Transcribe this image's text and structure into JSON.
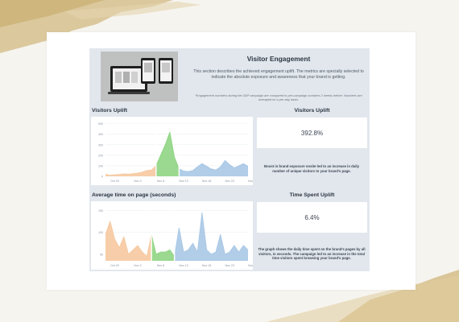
{
  "header": {
    "title": "Visitor Engagement",
    "description": "This section describes the achieved engagement uplift. The metrics are specially selected to indicate the absolute exposure and awareness that your brand is getting.",
    "footnote": "*Engagement numbers during the ZAP campaign are compared to pre-campaign numbers 2 weeks before. Numbers are averaged on a per-day basis."
  },
  "visitors": {
    "chart_title": "Visitors Uplift",
    "metric_title": "Visitors Uplift",
    "metric_value": "392.8%",
    "caption": "Boost in brand exposure onsite led to an increase in daily number of unique visitors to your brand's page."
  },
  "time": {
    "chart_title": "Average time on page (seconds)",
    "metric_title": "Time Spent Uplift",
    "metric_value": "6.4%",
    "caption": "The graph shows the daily time spent on the brand's pages by all visitors, in seconds. The campaign led to an increase in the total time visitors spent browsing your brand's page."
  },
  "colors": {
    "pre_campaign": "#f6c9a0",
    "campaign": "#8fd583",
    "post_campaign": "#a9c8e6",
    "dashboard_bg": "#e2e7ed"
  },
  "chart_data": [
    {
      "type": "area",
      "title": "Visitors Uplift",
      "x_tick_labels": [
        "Oct 29",
        "Nov 3",
        "Nov 8",
        "Nov 13",
        "Nov 18",
        "Nov 23",
        "Nov 28"
      ],
      "y_ticks": [
        0,
        100,
        200,
        300,
        400,
        500
      ],
      "ylim": [
        0,
        520
      ],
      "grid": true,
      "x": [
        0,
        1,
        2,
        3,
        4,
        5,
        6,
        7,
        8,
        9,
        10,
        11,
        12,
        13,
        14,
        15,
        16,
        17,
        18,
        19,
        20,
        21,
        22,
        23,
        24,
        25,
        26,
        27,
        28,
        29,
        30,
        31
      ],
      "y": [
        20,
        10,
        15,
        18,
        22,
        20,
        25,
        30,
        40,
        55,
        60,
        100,
        200,
        300,
        420,
        180,
        70,
        50,
        45,
        55,
        90,
        120,
        95,
        70,
        60,
        90,
        150,
        110,
        80,
        100,
        120,
        95
      ],
      "segments": [
        {
          "name": "pre",
          "from": 0,
          "to": 11
        },
        {
          "name": "campaign",
          "from": 11,
          "to": 16
        },
        {
          "name": "post",
          "from": 16,
          "to": 31
        }
      ]
    },
    {
      "type": "area",
      "title": "Average time on page (seconds)",
      "x_tick_labels": [
        "Oct 29",
        "Nov 3",
        "Nov 8",
        "Nov 13",
        "Nov 18",
        "Nov 23",
        "Nov 28"
      ],
      "y_ticks": [
        50,
        100,
        150
      ],
      "ylim": [
        35,
        160
      ],
      "grid": true,
      "x": [
        0,
        1,
        2,
        3,
        4,
        5,
        6,
        7,
        8,
        9,
        10,
        11,
        12,
        13,
        14,
        15,
        16,
        17,
        18,
        19,
        20,
        21,
        22,
        23,
        24,
        25,
        26,
        27,
        28,
        29,
        30,
        31
      ],
      "y": [
        95,
        125,
        85,
        65,
        90,
        50,
        60,
        70,
        55,
        45,
        95,
        50,
        55,
        55,
        60,
        45,
        110,
        55,
        60,
        75,
        55,
        145,
        60,
        50,
        55,
        95,
        50,
        55,
        70,
        55,
        70,
        60
      ],
      "segments": [
        {
          "name": "pre",
          "from": 0,
          "to": 10
        },
        {
          "name": "campaign",
          "from": 10,
          "to": 15
        },
        {
          "name": "post",
          "from": 15,
          "to": 31
        }
      ]
    }
  ]
}
